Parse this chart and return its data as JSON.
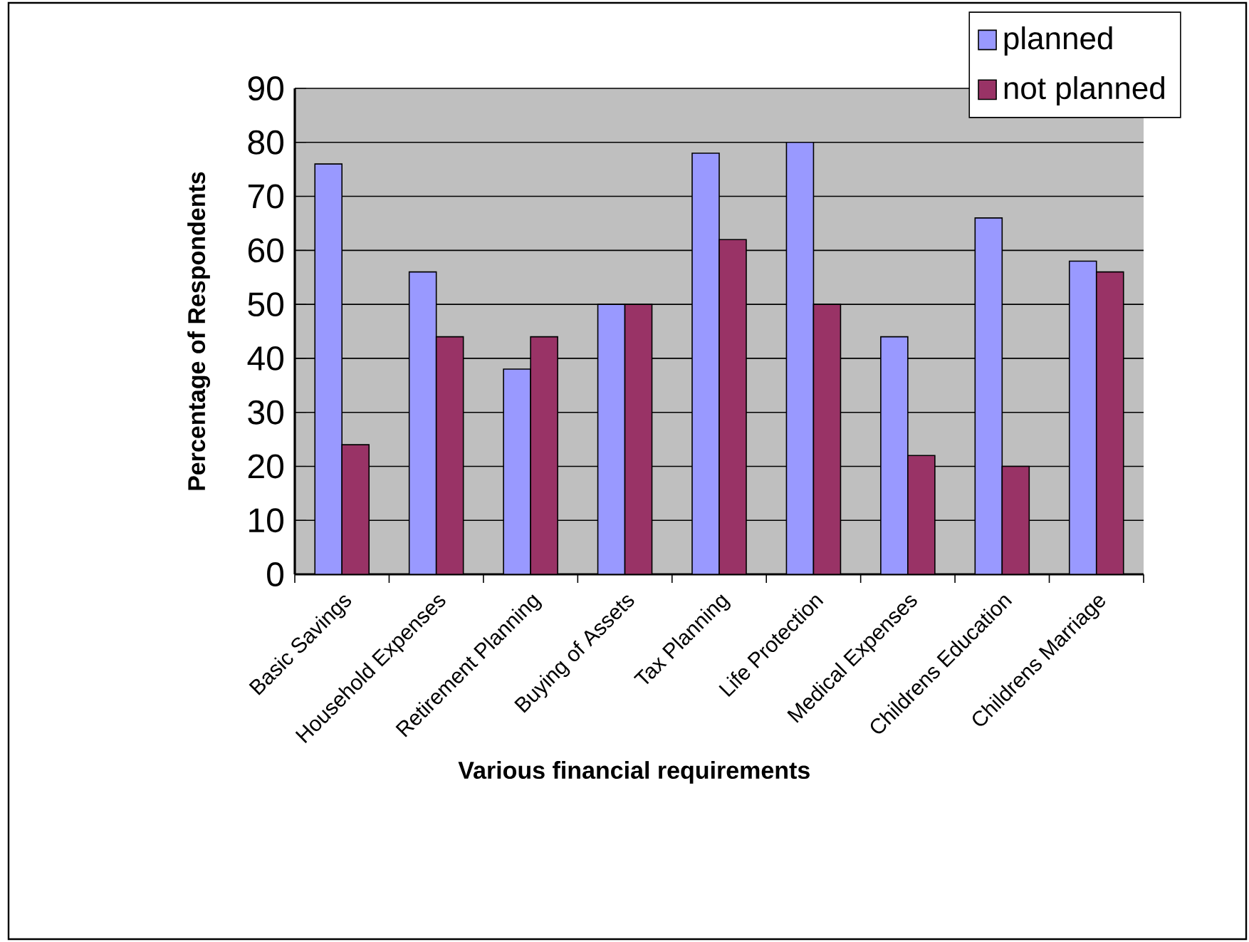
{
  "chart_data": {
    "type": "bar",
    "xlabel": "Various  financial  requirements",
    "ylabel": "Percentage  of  Respondents",
    "categories": [
      "Basic Savings",
      "Household Expenses",
      "Retirement Planning",
      "Buying of Assets",
      "Tax Planning",
      "Life Protection",
      "Medical Expenses",
      "Childrens Education",
      "Childrens Marriage"
    ],
    "series": [
      {
        "name": "planned",
        "color": "#9999ff",
        "values": [
          76,
          56,
          38,
          50,
          78,
          80,
          44,
          66,
          58
        ]
      },
      {
        "name": "not planned",
        "color": "#993366",
        "values": [
          24,
          44,
          44,
          50,
          62,
          50,
          22,
          20,
          56
        ]
      }
    ],
    "ylim": [
      0,
      90
    ],
    "yticks": [
      0,
      10,
      20,
      30,
      40,
      50,
      60,
      70,
      80,
      90
    ],
    "grid": "y",
    "legend": "top right"
  }
}
